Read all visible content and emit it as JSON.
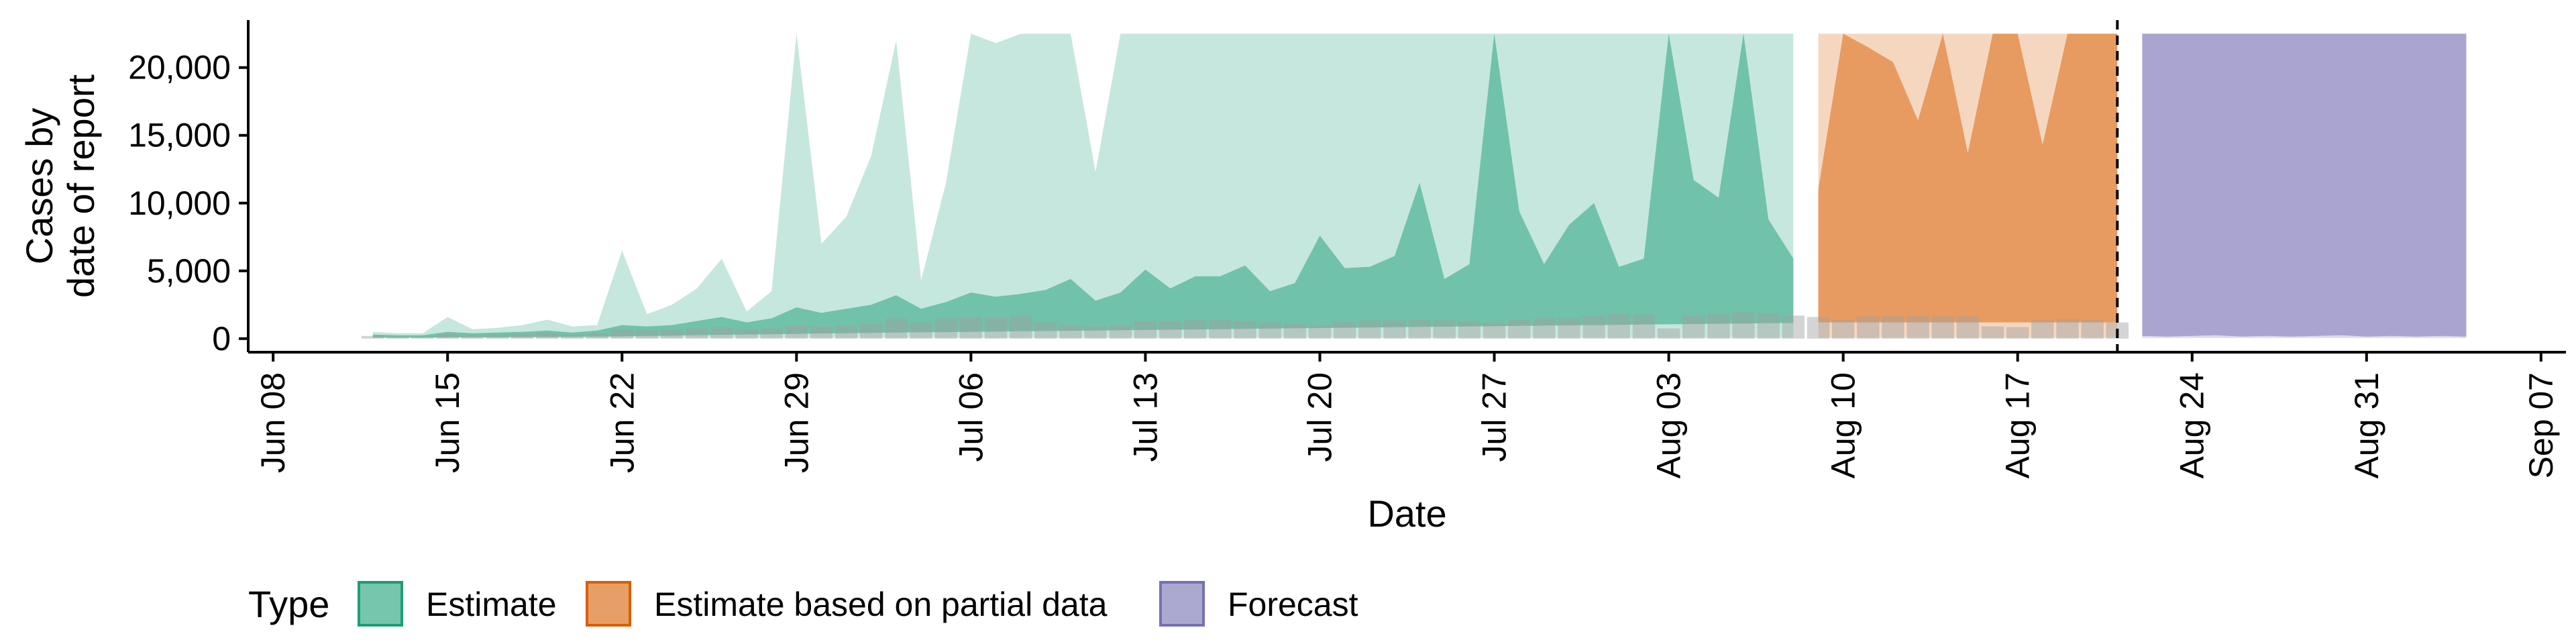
{
  "chart_data": {
    "type": "area",
    "title": "",
    "xlabel": "Date",
    "ylabel": [
      "Cases by",
      "date of report"
    ],
    "x_ticks": [
      "Jun 08",
      "Jun 15",
      "Jun 22",
      "Jun 29",
      "Jul 06",
      "Jul 13",
      "Jul 20",
      "Jul 27",
      "Aug 03",
      "Aug 10",
      "Aug 17",
      "Aug 24",
      "Aug 31",
      "Sep 07"
    ],
    "y_ticks": [
      "0",
      "5,000",
      "10,000",
      "15,000",
      "20,000"
    ],
    "xlim": [
      "2020-06-07",
      "2020-09-08"
    ],
    "ylim": [
      -1000,
      23500
    ],
    "forecast_date": "2020-08-21",
    "legend": {
      "title": "Type",
      "position": "bottom-left",
      "entries": [
        {
          "label": "Estimate",
          "fill": "#1b9e77"
        },
        {
          "label": "Estimate based on partial data",
          "fill": "#d95f02"
        },
        {
          "label": "Forecast",
          "fill": "#7570b3"
        }
      ]
    },
    "colors": {
      "estimate": "#1b9e77",
      "partial": "#d95f02",
      "forecast": "#7570b3",
      "reported_bars": "#a0a0a0",
      "forecast_line": "#000000"
    },
    "estimate": {
      "x": [
        "2020-06-12",
        "2020-06-13",
        "2020-06-14",
        "2020-06-15",
        "2020-06-16",
        "2020-06-17",
        "2020-06-18",
        "2020-06-19",
        "2020-06-20",
        "2020-06-21",
        "2020-06-22",
        "2020-06-23",
        "2020-06-24",
        "2020-06-25",
        "2020-06-26",
        "2020-06-27",
        "2020-06-28",
        "2020-06-29",
        "2020-06-30",
        "2020-07-01",
        "2020-07-02",
        "2020-07-03",
        "2020-07-04",
        "2020-07-05",
        "2020-07-06",
        "2020-07-07",
        "2020-07-08",
        "2020-07-09",
        "2020-07-10",
        "2020-07-11",
        "2020-07-12",
        "2020-07-13",
        "2020-07-14",
        "2020-07-15",
        "2020-07-16",
        "2020-07-17",
        "2020-07-18",
        "2020-07-19",
        "2020-07-20",
        "2020-07-21",
        "2020-07-22",
        "2020-07-23",
        "2020-07-24",
        "2020-07-25",
        "2020-07-26",
        "2020-07-27",
        "2020-07-28",
        "2020-07-29",
        "2020-07-30",
        "2020-07-31",
        "2020-08-01",
        "2020-08-02",
        "2020-08-03",
        "2020-08-04",
        "2020-08-05",
        "2020-08-06",
        "2020-08-07",
        "2020-08-08"
      ],
      "outer_lower": [
        50,
        50,
        50,
        50,
        50,
        50,
        50,
        50,
        50,
        60,
        60,
        60,
        60,
        60,
        60,
        60,
        60,
        60,
        60,
        60,
        60,
        60,
        60,
        60,
        60,
        60,
        60,
        60,
        60,
        60,
        60,
        60,
        60,
        60,
        60,
        60,
        60,
        60,
        60,
        60,
        60,
        60,
        60,
        60,
        60,
        60,
        60,
        60,
        60,
        60,
        60,
        60,
        60,
        60,
        60,
        60,
        60,
        60
      ],
      "outer_upper": [
        500,
        400,
        400,
        1600,
        700,
        800,
        1000,
        1400,
        900,
        1000,
        6500,
        1800,
        2500,
        3700,
        5900,
        2000,
        3500,
        22500,
        7000,
        9000,
        13500,
        22000,
        4300,
        11500,
        22500,
        21800,
        22500,
        22500,
        22500,
        12300,
        22500,
        22500,
        22500,
        22500,
        22500,
        22500,
        22500,
        22500,
        22500,
        22500,
        22500,
        22500,
        22500,
        22500,
        22500,
        22500,
        22500,
        22500,
        22500,
        22500,
        22500,
        22500,
        22500,
        22500,
        22500,
        22500,
        22500,
        22500
      ],
      "inner_lower": [
        80,
        80,
        80,
        100,
        100,
        110,
        120,
        130,
        140,
        150,
        180,
        200,
        220,
        250,
        280,
        300,
        320,
        350,
        380,
        400,
        420,
        450,
        460,
        480,
        500,
        520,
        540,
        560,
        580,
        600,
        620,
        640,
        660,
        680,
        700,
        720,
        740,
        760,
        780,
        800,
        820,
        840,
        860,
        880,
        900,
        920,
        940,
        960,
        980,
        1000,
        1020,
        1040,
        1060,
        1080,
        1100,
        1120,
        1140,
        1160
      ],
      "inner_upper": [
        300,
        250,
        250,
        500,
        400,
        450,
        500,
        600,
        450,
        600,
        1000,
        900,
        1000,
        1300,
        1600,
        1200,
        1500,
        2300,
        1900,
        2200,
        2500,
        3200,
        2200,
        2700,
        3400,
        3100,
        3300,
        3600,
        4400,
        2800,
        3400,
        5100,
        3700,
        4600,
        4600,
        5400,
        3500,
        4100,
        7600,
        5200,
        5300,
        6100,
        11500,
        4400,
        5500,
        22500,
        9400,
        5500,
        8400,
        10000,
        5300,
        5900,
        22500,
        11700,
        10400,
        22500,
        8800,
        5900
      ]
    },
    "partial": {
      "x": [
        "2020-08-09",
        "2020-08-10",
        "2020-08-11",
        "2020-08-12",
        "2020-08-13",
        "2020-08-14",
        "2020-08-15",
        "2020-08-16",
        "2020-08-17",
        "2020-08-18",
        "2020-08-19",
        "2020-08-20",
        "2020-08-21"
      ],
      "outer_lower": [
        60,
        60,
        60,
        60,
        60,
        60,
        60,
        60,
        60,
        60,
        60,
        60,
        60
      ],
      "outer_upper": [
        22500,
        22500,
        22500,
        22500,
        22500,
        22500,
        22500,
        22500,
        22500,
        22500,
        22500,
        22500,
        22500
      ],
      "inner_lower": [
        1200,
        1200,
        1200,
        1200,
        1200,
        1200,
        1200,
        1200,
        1200,
        1200,
        1200,
        1200,
        1200
      ],
      "inner_upper": [
        11000,
        22500,
        21500,
        20400,
        16100,
        22500,
        13700,
        22500,
        22500,
        14300,
        22500,
        22500,
        22500
      ]
    },
    "forecast": {
      "x": [
        "2020-08-22",
        "2020-08-23",
        "2020-08-24",
        "2020-08-25",
        "2020-08-26",
        "2020-08-27",
        "2020-08-28",
        "2020-08-29",
        "2020-08-30",
        "2020-08-31",
        "2020-09-01",
        "2020-09-02",
        "2020-09-03",
        "2020-09-04"
      ],
      "outer_lower": [
        50,
        50,
        50,
        50,
        50,
        50,
        50,
        50,
        50,
        50,
        50,
        50,
        50,
        50
      ],
      "outer_upper": [
        22500,
        22500,
        22500,
        22500,
        22500,
        22500,
        22500,
        22500,
        22500,
        22500,
        22500,
        22500,
        22500,
        22500
      ],
      "inner_lower": [
        200,
        150,
        200,
        250,
        150,
        200,
        150,
        200,
        250,
        150,
        200,
        150,
        200,
        150
      ],
      "inner_upper": [
        22500,
        22500,
        22500,
        22500,
        22500,
        22500,
        22500,
        22500,
        22500,
        22500,
        22500,
        22500,
        22500,
        22500
      ]
    },
    "reported_cases": {
      "x": [
        "2020-06-12",
        "2020-06-13",
        "2020-06-14",
        "2020-06-15",
        "2020-06-16",
        "2020-06-17",
        "2020-06-18",
        "2020-06-19",
        "2020-06-20",
        "2020-06-21",
        "2020-06-22",
        "2020-06-23",
        "2020-06-24",
        "2020-06-25",
        "2020-06-26",
        "2020-06-27",
        "2020-06-28",
        "2020-06-29",
        "2020-06-30",
        "2020-07-01",
        "2020-07-02",
        "2020-07-03",
        "2020-07-04",
        "2020-07-05",
        "2020-07-06",
        "2020-07-07",
        "2020-07-08",
        "2020-07-09",
        "2020-07-10",
        "2020-07-11",
        "2020-07-12",
        "2020-07-13",
        "2020-07-14",
        "2020-07-15",
        "2020-07-16",
        "2020-07-17",
        "2020-07-18",
        "2020-07-19",
        "2020-07-20",
        "2020-07-21",
        "2020-07-22",
        "2020-07-23",
        "2020-07-24",
        "2020-07-25",
        "2020-07-26",
        "2020-07-27",
        "2020-07-28",
        "2020-07-29",
        "2020-07-30",
        "2020-07-31",
        "2020-08-01",
        "2020-08-02",
        "2020-08-03",
        "2020-08-04",
        "2020-08-05",
        "2020-08-06",
        "2020-08-07",
        "2020-08-08",
        "2020-08-09",
        "2020-08-10",
        "2020-08-11",
        "2020-08-12",
        "2020-08-13",
        "2020-08-14",
        "2020-08-15",
        "2020-08-16",
        "2020-08-17",
        "2020-08-18",
        "2020-08-19",
        "2020-08-20",
        "2020-08-21"
      ],
      "values": [
        200,
        150,
        150,
        350,
        250,
        300,
        350,
        400,
        300,
        400,
        700,
        600,
        650,
        750,
        850,
        700,
        750,
        1000,
        900,
        950,
        1100,
        1500,
        1200,
        1500,
        1600,
        1600,
        1650,
        1200,
        1000,
        900,
        1000,
        1300,
        1300,
        1400,
        1400,
        1300,
        1200,
        1100,
        1000,
        1250,
        1350,
        1350,
        1400,
        1350,
        1300,
        1200,
        1400,
        1500,
        1550,
        1700,
        1800,
        1750,
        750,
        1700,
        1800,
        1950,
        1850,
        1700,
        1600,
        1400,
        1650,
        1700,
        1700,
        1650,
        1650,
        900,
        850,
        1350,
        1450,
        1400,
        1200
      ]
    }
  }
}
